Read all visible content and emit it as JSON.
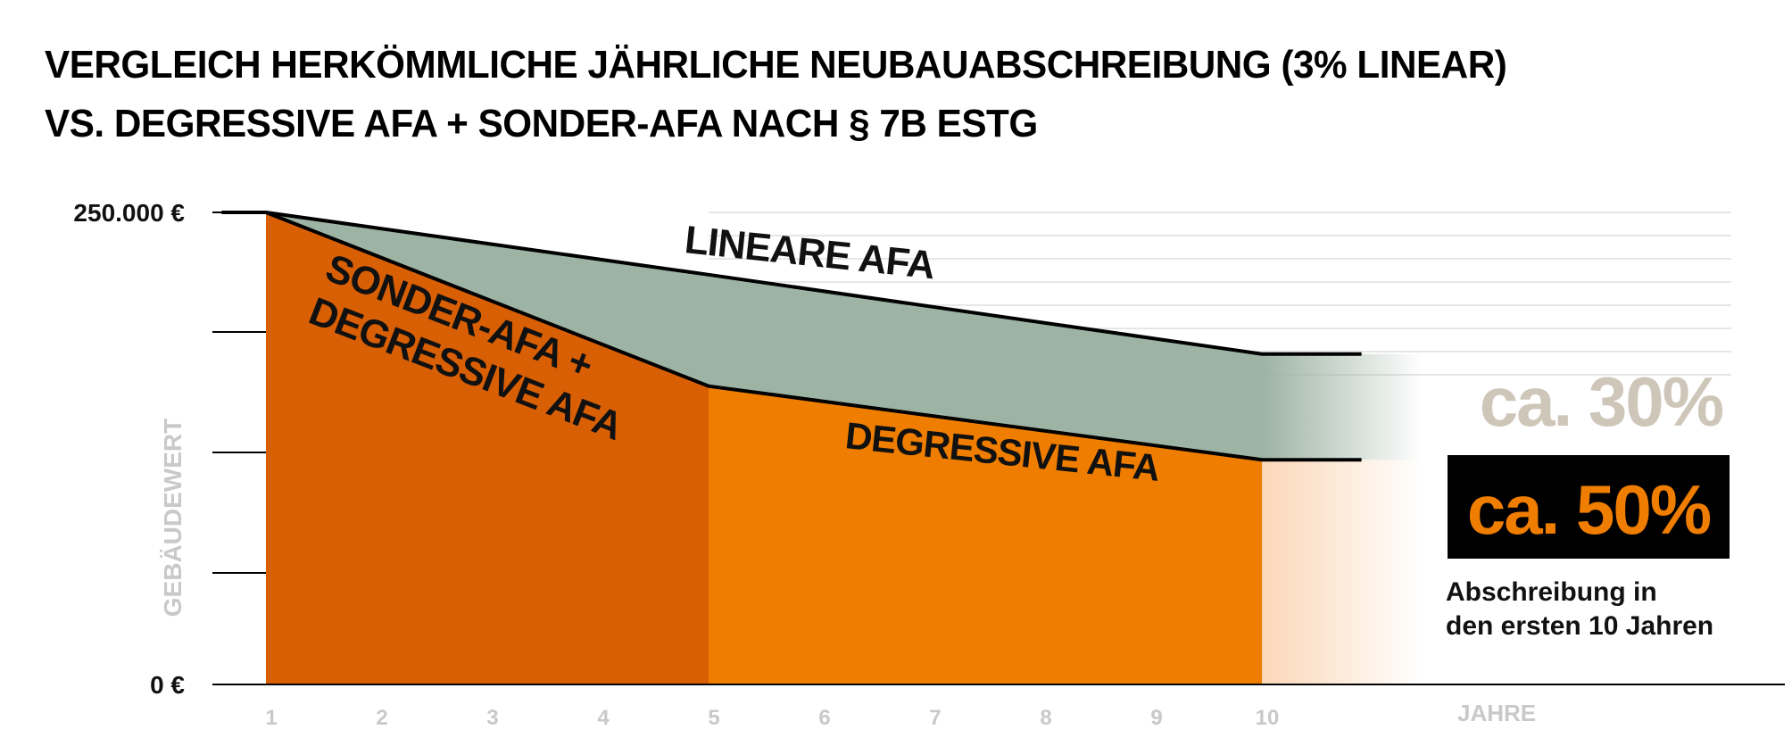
{
  "title": {
    "line1": "VERGLEICH HERKÖMMLICHE JÄHRLICHE NEUBAUABSCHREIBUNG (3% LINEAR)",
    "line2": "VS. DEGRESSIVE AFA + SONDER-AFA NACH § 7B ESTG"
  },
  "note": {
    "line1": "Abschreibung in",
    "line2": "den ersten 10 Jahren"
  },
  "chart_data": {
    "type": "area",
    "xlabel": "JAHRE",
    "ylabel": "GEBÄUDEWERT",
    "ylim": [
      0,
      250000
    ],
    "y_tick_labels": [
      {
        "value": 250000,
        "label": "250.000 €"
      },
      {
        "value": 0,
        "label": "0 €"
      }
    ],
    "x_ticks": [
      "1",
      "2",
      "3",
      "4",
      "5",
      "6",
      "7",
      "8",
      "9",
      "10"
    ],
    "series": [
      {
        "name": "LINEARE AFA",
        "color": "#9db3a3",
        "points": [
          [
            1,
            250000
          ],
          [
            5,
            217000
          ],
          [
            10,
            175000
          ]
        ]
      },
      {
        "name": "DEGRESSIVE AFA",
        "color": "#ef7d00",
        "points": [
          [
            5,
            158000
          ],
          [
            10,
            119000
          ]
        ]
      },
      {
        "name": "SONDER-AFA + DEGRESSIVE AFA",
        "color": "#d95f05",
        "points": [
          [
            1,
            250000
          ],
          [
            5,
            158000
          ]
        ]
      }
    ],
    "annotations": {
      "linear_pct": "ca. 30%",
      "degressive_pct": "ca. 50%"
    },
    "colors": {
      "lineare": "#9db3a3",
      "sonder": "#d95f05",
      "degressive": "#ef7d00",
      "fade": "#fbd7b8",
      "pct30": "#cec6b8",
      "pct50_bg": "#000000",
      "pct50_text": "#ef7d00",
      "tick_text": "#c9c9c9",
      "grid": "#dedede"
    }
  }
}
